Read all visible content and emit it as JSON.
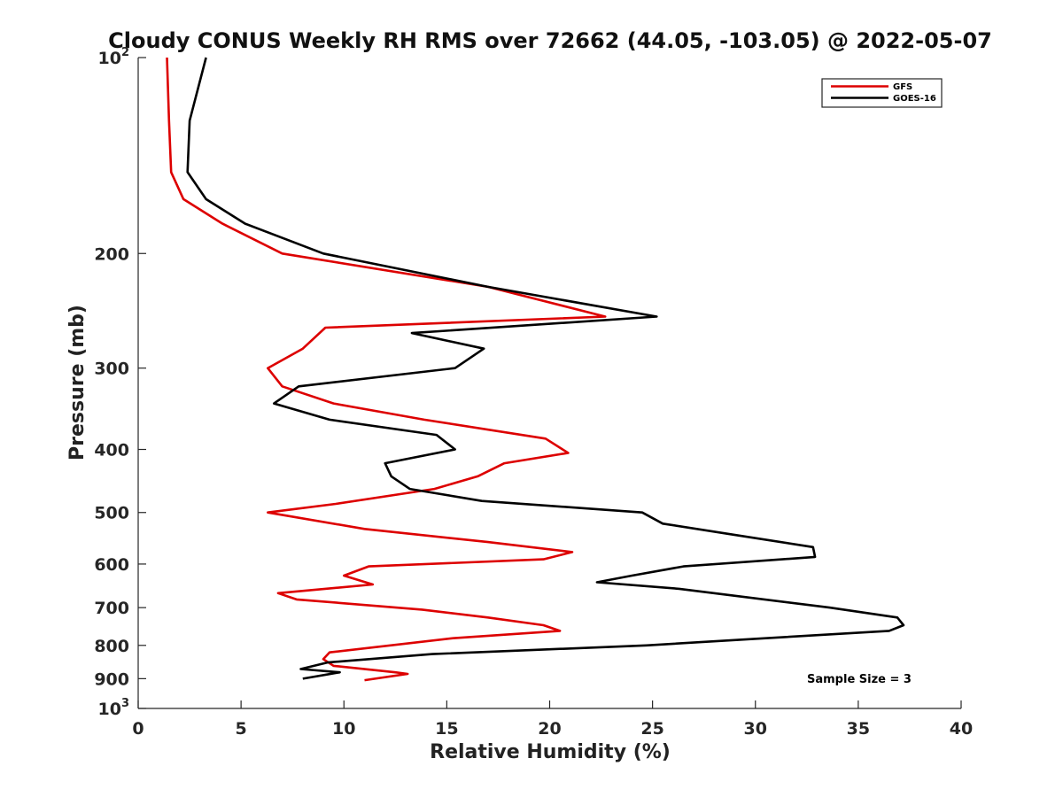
{
  "chart_data": {
    "type": "line",
    "title": "Cloudy CONUS Weekly RH RMS over 72662 (44.05, -103.05) @ 2022-05-07",
    "xlabel": "Relative Humidity (%)",
    "ylabel": "Pressure (mb)",
    "xlim": [
      0,
      40
    ],
    "ylim": [
      100,
      1000
    ],
    "y_scale": "log",
    "y_reversed": true,
    "grid": false,
    "legend_position": "top-right",
    "x_ticks": [
      0,
      5,
      10,
      15,
      20,
      25,
      30,
      35,
      40
    ],
    "y_ticks": [
      {
        "value": 100,
        "base": "10",
        "exp": "2"
      },
      {
        "value": 200,
        "label": "200"
      },
      {
        "value": 300,
        "label": "300"
      },
      {
        "value": 400,
        "label": "400"
      },
      {
        "value": 500,
        "label": "500"
      },
      {
        "value": 600,
        "label": "600"
      },
      {
        "value": 700,
        "label": "700"
      },
      {
        "value": 800,
        "label": "800"
      },
      {
        "value": 900,
        "label": "900"
      },
      {
        "value": 1000,
        "base": "10",
        "exp": "3"
      }
    ],
    "annotation": "Sample Size = 3",
    "series": [
      {
        "name": "GFS",
        "color": "#dd0000",
        "points": [
          [
            1.4,
            100
          ],
          [
            1.5,
            125
          ],
          [
            1.6,
            150
          ],
          [
            2.2,
            165
          ],
          [
            4.1,
            180
          ],
          [
            7.0,
            200
          ],
          [
            17.0,
            225
          ],
          [
            22.7,
            250
          ],
          [
            9.1,
            260
          ],
          [
            8.0,
            280
          ],
          [
            6.3,
            300
          ],
          [
            7.0,
            320
          ],
          [
            9.5,
            340
          ],
          [
            13.9,
            360
          ],
          [
            19.8,
            385
          ],
          [
            20.9,
            405
          ],
          [
            17.8,
            420
          ],
          [
            16.5,
            440
          ],
          [
            14.4,
            460
          ],
          [
            9.6,
            485
          ],
          [
            6.3,
            500
          ],
          [
            11.0,
            530
          ],
          [
            17.0,
            555
          ],
          [
            21.1,
            575
          ],
          [
            19.7,
            590
          ],
          [
            11.2,
            605
          ],
          [
            10.0,
            625
          ],
          [
            11.4,
            645
          ],
          [
            6.8,
            665
          ],
          [
            7.7,
            680
          ],
          [
            13.8,
            705
          ],
          [
            17.0,
            725
          ],
          [
            19.7,
            745
          ],
          [
            20.5,
            760
          ],
          [
            15.3,
            780
          ],
          [
            9.3,
            820
          ],
          [
            9.0,
            840
          ],
          [
            9.5,
            860
          ],
          [
            12.5,
            880
          ],
          [
            13.1,
            885
          ],
          [
            11.0,
            905
          ]
        ]
      },
      {
        "name": "GOES-16",
        "color": "#000000",
        "points": [
          [
            3.3,
            100
          ],
          [
            2.5,
            125
          ],
          [
            2.4,
            150
          ],
          [
            3.3,
            165
          ],
          [
            5.2,
            180
          ],
          [
            9.0,
            200
          ],
          [
            17.0,
            225
          ],
          [
            25.2,
            250
          ],
          [
            13.3,
            265
          ],
          [
            16.8,
            280
          ],
          [
            15.4,
            300
          ],
          [
            7.8,
            320
          ],
          [
            6.6,
            340
          ],
          [
            9.3,
            360
          ],
          [
            14.5,
            380
          ],
          [
            15.4,
            400
          ],
          [
            12.0,
            420
          ],
          [
            12.3,
            440
          ],
          [
            13.2,
            460
          ],
          [
            16.7,
            480
          ],
          [
            24.5,
            500
          ],
          [
            25.5,
            520
          ],
          [
            28.8,
            540
          ],
          [
            32.8,
            565
          ],
          [
            32.9,
            585
          ],
          [
            26.5,
            605
          ],
          [
            24.0,
            625
          ],
          [
            22.3,
            640
          ],
          [
            26.3,
            655
          ],
          [
            33.6,
            700
          ],
          [
            36.9,
            725
          ],
          [
            37.2,
            745
          ],
          [
            36.5,
            760
          ],
          [
            30.5,
            780
          ],
          [
            24.7,
            800
          ],
          [
            14.3,
            825
          ],
          [
            9.2,
            850
          ],
          [
            7.9,
            870
          ],
          [
            9.8,
            880
          ],
          [
            8.0,
            900
          ]
        ]
      }
    ]
  }
}
